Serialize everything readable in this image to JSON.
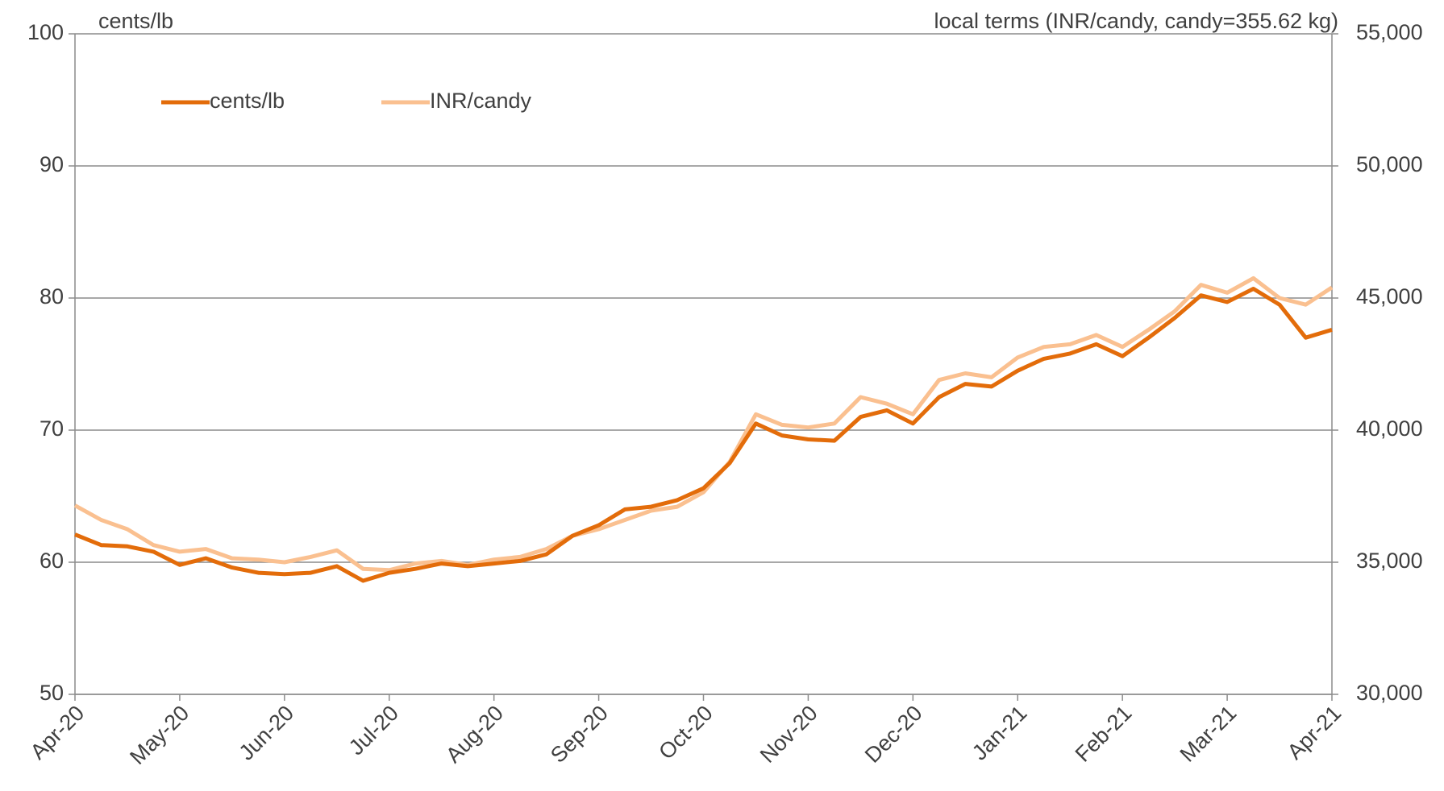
{
  "chart_data": {
    "type": "line",
    "y_label": "cents/lb",
    "y2_label": "local terms (INR/candy, candy=355.62 kg)",
    "categories": [
      "Apr-20",
      null,
      null,
      null,
      "May-20",
      null,
      null,
      null,
      "Jun-20",
      null,
      null,
      null,
      "Jul-20",
      null,
      null,
      null,
      "Aug-20",
      null,
      null,
      null,
      "Sep-20",
      null,
      null,
      null,
      "Oct-20",
      null,
      null,
      null,
      "Nov-20",
      null,
      null,
      null,
      "Dec-20",
      null,
      null,
      null,
      "Jan-21",
      null,
      null,
      null,
      "Feb-21",
      null,
      null,
      null,
      "Mar-21",
      null,
      null,
      null,
      "Apr-21"
    ],
    "series": [
      {
        "name": "cents/lb",
        "color": "#e36c0a",
        "values": [
          62.1,
          61.3,
          61.2,
          60.8,
          59.8,
          60.3,
          59.6,
          59.2,
          59.1,
          59.2,
          59.7,
          58.6,
          59.2,
          59.5,
          59.9,
          59.7,
          59.9,
          60.1,
          60.6,
          62.0,
          62.8,
          64.0,
          64.2,
          64.7,
          65.6,
          67.5,
          70.5,
          69.6,
          69.3,
          69.2,
          71.0,
          71.5,
          70.5,
          72.5,
          73.5,
          73.3,
          74.5,
          75.4,
          75.8,
          76.5,
          75.6,
          77.0,
          78.5,
          80.2,
          79.7,
          80.7,
          79.5,
          77.0,
          77.6
        ]
      },
      {
        "name": "INR/candy",
        "color": "#fac090",
        "axis": "y2",
        "values": [
          37150,
          36600,
          36250,
          35650,
          35400,
          35500,
          35150,
          35100,
          35000,
          35200,
          35450,
          34750,
          34700,
          34950,
          35050,
          34900,
          35100,
          35200,
          35500,
          36000,
          36250,
          36600,
          36950,
          37100,
          37650,
          38800,
          40600,
          40200,
          40100,
          40250,
          41250,
          41000,
          40600,
          41900,
          42150,
          42000,
          42750,
          43150,
          43250,
          43600,
          43150,
          43800,
          44500,
          45500,
          45200,
          45750,
          45000,
          44750,
          45400
        ]
      }
    ],
    "ylim": [
      50,
      100
    ],
    "yticks": [
      50,
      60,
      70,
      80,
      90,
      100
    ],
    "y2lim": [
      30000,
      55000
    ],
    "y2ticks": [
      {
        "value": 30000,
        "label": "30,000"
      },
      {
        "value": 35000,
        "label": "35,000"
      },
      {
        "value": 40000,
        "label": "40,000"
      },
      {
        "value": 45000,
        "label": "45,000"
      },
      {
        "value": 50000,
        "label": "50,000"
      },
      {
        "value": 55000,
        "label": "55,000"
      }
    ],
    "grid": true,
    "legend": "upper left"
  }
}
